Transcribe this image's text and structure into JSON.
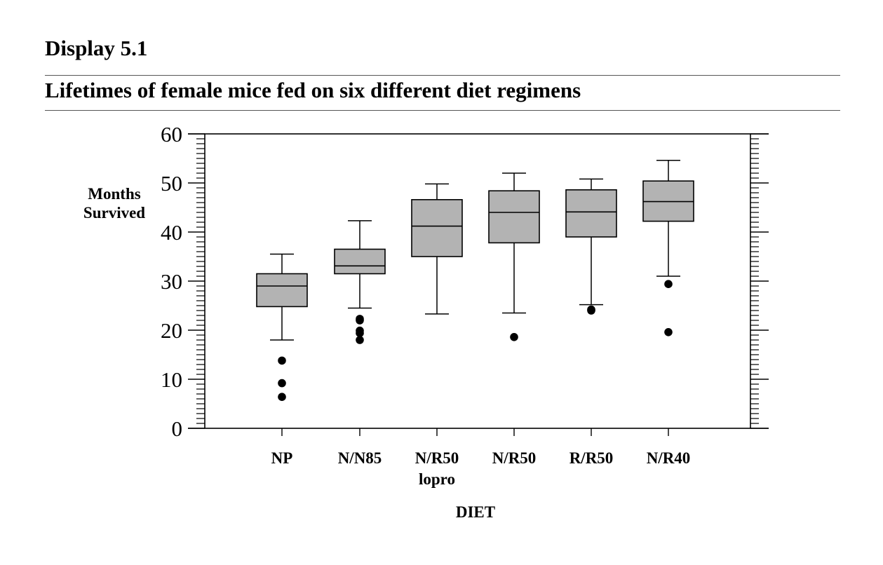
{
  "header": {
    "display_label": "Display 5.1"
  },
  "chart_data": {
    "type": "box",
    "title": "Lifetimes of female mice fed on six different diet regimens",
    "ylabel_lines": [
      "Months",
      "Survived"
    ],
    "xlabel": "DIET",
    "ylim": [
      0,
      60
    ],
    "y_ticks": [
      0,
      10,
      20,
      30,
      40,
      50,
      60
    ],
    "grid": false,
    "box_fill": "#b3b3b3",
    "outlier_color": "#000000",
    "categories": [
      {
        "label_lines": [
          "NP"
        ],
        "min": 18.0,
        "q1": 24.8,
        "median": 29.0,
        "q3": 31.5,
        "max": 35.5,
        "outliers": [
          13.8,
          9.2,
          6.4
        ]
      },
      {
        "label_lines": [
          "N/N85"
        ],
        "min": 24.5,
        "q1": 31.5,
        "median": 33.1,
        "q3": 36.5,
        "max": 42.3,
        "outliers": [
          22.3,
          22.0,
          19.9,
          19.4,
          18.0
        ]
      },
      {
        "label_lines": [
          "N/R50",
          "lopro"
        ],
        "min": 23.3,
        "q1": 35.0,
        "median": 41.2,
        "q3": 46.6,
        "max": 49.8,
        "outliers": []
      },
      {
        "label_lines": [
          "N/R50"
        ],
        "min": 23.5,
        "q1": 37.8,
        "median": 44.0,
        "q3": 48.4,
        "max": 52.0,
        "outliers": [
          18.6
        ]
      },
      {
        "label_lines": [
          "R/R50"
        ],
        "min": 25.2,
        "q1": 39.0,
        "median": 44.1,
        "q3": 48.6,
        "max": 50.8,
        "outliers": [
          24.2,
          24.0
        ]
      },
      {
        "label_lines": [
          "N/R40"
        ],
        "min": 31.0,
        "q1": 42.2,
        "median": 46.2,
        "q3": 50.4,
        "max": 54.6,
        "outliers": [
          29.4,
          19.6
        ]
      }
    ]
  }
}
